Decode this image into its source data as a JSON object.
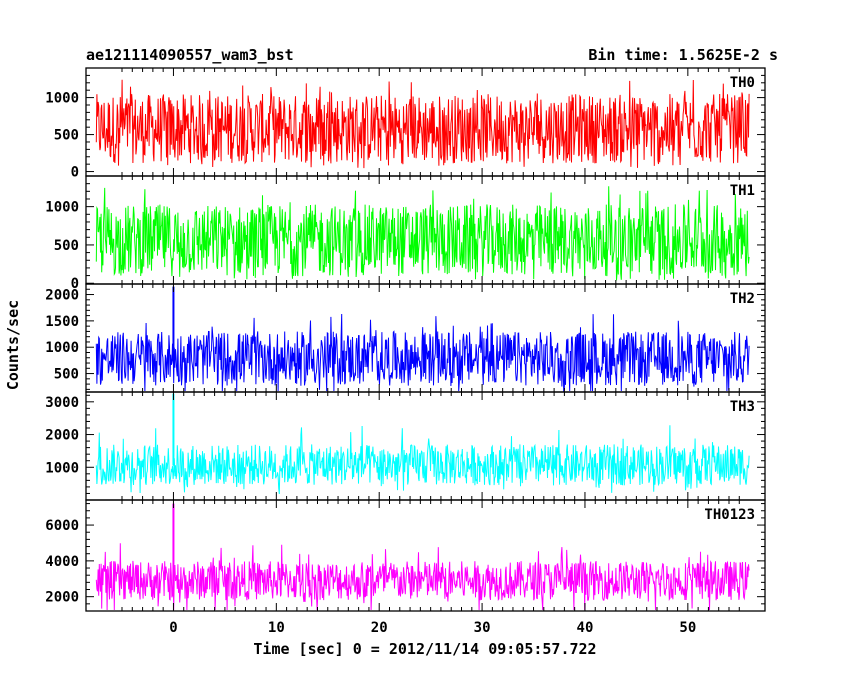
{
  "header": {
    "title": "ae121114090557_wam3_bst",
    "bin_time": "Bin time: 1.5625E-2 s"
  },
  "chart_data": {
    "type": "line",
    "ylabel": "Counts/sec",
    "xlabel": "Time [sec] 0 = 2012/11/14 09:05:57.722",
    "xlim": [
      -8.5,
      57.5
    ],
    "x_ticks": [
      0,
      10,
      20,
      30,
      40,
      50
    ],
    "data_range_x": [
      -7.5,
      56
    ],
    "burst_time": 0,
    "grid": false,
    "panels": [
      {
        "name": "TH0",
        "color": "#ff0000",
        "ylim": [
          -60,
          1400
        ],
        "y_ticks": [
          0,
          500,
          1000
        ],
        "baseline": 560,
        "low": 110,
        "high": 1050,
        "spike_max": 1350,
        "spike_at_zero": null
      },
      {
        "name": "TH1",
        "color": "#00ff00",
        "ylim": [
          -10,
          1400
        ],
        "y_ticks": [
          0,
          500,
          1000
        ],
        "baseline": 540,
        "low": 90,
        "high": 1030,
        "spike_max": 1300,
        "spike_at_zero": null
      },
      {
        "name": "TH2",
        "color": "#0000ff",
        "ylim": [
          150,
          2200
        ],
        "y_ticks": [
          500,
          1000,
          1500,
          2000
        ],
        "baseline": 730,
        "low": 270,
        "high": 1300,
        "spike_max": 1650,
        "spike_at_zero": 2150
      },
      {
        "name": "TH3",
        "color": "#00ffff",
        "ylim": [
          0,
          3300
        ],
        "y_ticks": [
          1000,
          2000,
          3000
        ],
        "baseline": 1050,
        "low": 450,
        "high": 1700,
        "spike_max": 2300,
        "spike_at_zero": 3250
      },
      {
        "name": "TH0123",
        "color": "#ff00ff",
        "ylim": [
          1200,
          7400
        ],
        "y_ticks": [
          2000,
          4000,
          6000
        ],
        "baseline": 2900,
        "low": 1800,
        "high": 4000,
        "spike_max": 5000,
        "spike_at_zero": 7200
      }
    ]
  }
}
